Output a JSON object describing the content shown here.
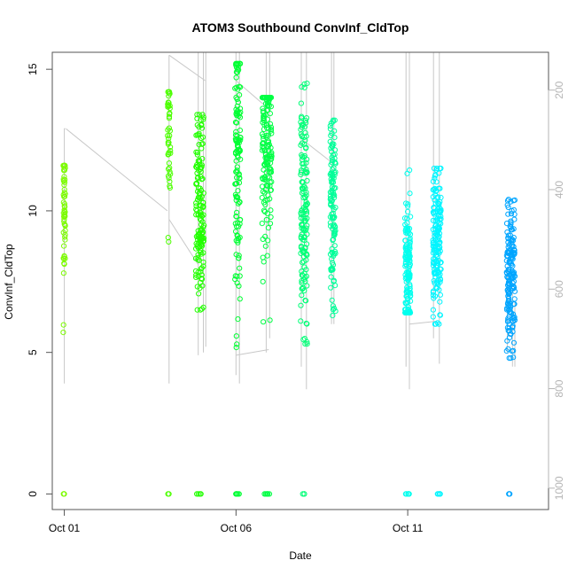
{
  "chart_data": {
    "type": "scatter",
    "title": "ATOM3 Southbound ConvInf_CldTop",
    "xlabel": "Date",
    "ylabel": "ConvInf_CldTop",
    "x_tick_labels": [
      "Oct 01",
      "Oct 06",
      "Oct 11"
    ],
    "x_tick_values": [
      1,
      6,
      11
    ],
    "xlim": [
      0.65,
      15.1
    ],
    "ylim": [
      -0.55,
      15.6
    ],
    "y_ticks": [
      0,
      5,
      10,
      15
    ],
    "secondary_axis": {
      "side": "right",
      "ticks": [
        200,
        400,
        600,
        800,
        1000
      ],
      "ylim_pressure": [
        1043,
        124
      ],
      "reversed": true,
      "color": "#b5b5b5"
    },
    "grid": false,
    "legend": "none",
    "marker": "open-circle",
    "colors": {
      "axis": "#555555",
      "secondary_axis": "#b5b5b5",
      "trace": "#c8c8c8"
    },
    "clusters": [
      {
        "x_day": 1.0,
        "width": 0.03,
        "y_range": [
          5.7,
          11.6
        ],
        "center": 10.2,
        "n": 60,
        "color": "#7cfc00",
        "zeros": 3
      },
      {
        "x_day": 4.05,
        "width": 0.04,
        "y_range": [
          8.8,
          14.2
        ],
        "center": 12.5,
        "n": 45,
        "color": "#4cff00",
        "zeros": 2
      },
      {
        "x_day": 4.95,
        "width": 0.12,
        "y_range": [
          6.5,
          13.4
        ],
        "center": 10.0,
        "n": 160,
        "color": "#22ff00",
        "zeros": 4
      },
      {
        "x_day": 6.05,
        "width": 0.08,
        "y_range": [
          5.0,
          15.2
        ],
        "center": 12.0,
        "n": 130,
        "color": "#00ff33",
        "zeros": 5
      },
      {
        "x_day": 6.9,
        "width": 0.14,
        "y_range": [
          6.0,
          14.0
        ],
        "center": 12.5,
        "n": 170,
        "color": "#00ff44",
        "zeros": 6
      },
      {
        "x_day": 7.98,
        "width": 0.1,
        "y_range": [
          5.3,
          14.6
        ],
        "center": 10.0,
        "n": 150,
        "color": "#00ff77",
        "zeros": 3
      },
      {
        "x_day": 8.82,
        "width": 0.08,
        "y_range": [
          6.3,
          13.2
        ],
        "center": 10.0,
        "n": 120,
        "color": "#00ff99",
        "zeros": 0
      },
      {
        "x_day": 11.0,
        "width": 0.08,
        "y_range": [
          6.4,
          11.6
        ],
        "center": 8.0,
        "n": 140,
        "color": "#00ffee",
        "zeros": 6
      },
      {
        "x_day": 11.85,
        "width": 0.12,
        "y_range": [
          6.0,
          11.5
        ],
        "center": 9.0,
        "n": 170,
        "color": "#00f5ff",
        "zeros": 5
      },
      {
        "x_day": 14.0,
        "width": 0.12,
        "y_range": [
          4.8,
          10.4
        ],
        "center": 7.7,
        "n": 170,
        "color": "#00a5ff",
        "zeros": 3
      }
    ],
    "traces": [
      {
        "x": [
          1.0,
          1.0,
          1.03
        ],
        "y": [
          3.9,
          12.9,
          12.9
        ]
      },
      {
        "x": [
          1.05,
          4.0
        ],
        "y": [
          12.9,
          10.0
        ]
      },
      {
        "x": [
          4.05,
          4.05
        ],
        "y": [
          3.9,
          15.5
        ]
      },
      {
        "x": [
          4.05,
          5.1
        ],
        "y": [
          15.5,
          14.6
        ]
      },
      {
        "x": [
          4.05,
          4.9
        ],
        "y": [
          9.7,
          8.1
        ]
      },
      {
        "x": [
          4.9,
          4.9
        ],
        "y": [
          4.9,
          15.6
        ]
      },
      {
        "x": [
          5.05,
          5.05
        ],
        "y": [
          5.0,
          15.6
        ]
      },
      {
        "x": [
          5.12,
          5.12
        ],
        "y": [
          5.2,
          15.6
        ]
      },
      {
        "x": [
          6.0,
          6.0
        ],
        "y": [
          4.2,
          15.6
        ]
      },
      {
        "x": [
          6.1,
          6.1
        ],
        "y": [
          3.9,
          15.6
        ]
      },
      {
        "x": [
          6.0,
          6.95
        ],
        "y": [
          14.6,
          13.6
        ]
      },
      {
        "x": [
          6.0,
          6.95
        ],
        "y": [
          4.9,
          5.1
        ]
      },
      {
        "x": [
          6.88,
          6.88
        ],
        "y": [
          5.0,
          15.6
        ]
      },
      {
        "x": [
          6.98,
          6.98
        ],
        "y": [
          5.5,
          15.6
        ]
      },
      {
        "x": [
          7.9,
          7.9
        ],
        "y": [
          4.5,
          15.6
        ]
      },
      {
        "x": [
          8.05,
          8.05
        ],
        "y": [
          3.7,
          15.6
        ]
      },
      {
        "x": [
          7.95,
          8.8
        ],
        "y": [
          12.5,
          11.7
        ]
      },
      {
        "x": [
          8.78,
          8.78
        ],
        "y": [
          6.0,
          15.6
        ]
      },
      {
        "x": [
          8.85,
          8.85
        ],
        "y": [
          6.0,
          15.6
        ]
      },
      {
        "x": [
          10.95,
          10.95
        ],
        "y": [
          4.5,
          15.6
        ]
      },
      {
        "x": [
          11.05,
          11.05
        ],
        "y": [
          3.7,
          15.6
        ]
      },
      {
        "x": [
          11.05,
          11.85
        ],
        "y": [
          6.0,
          6.1
        ]
      },
      {
        "x": [
          11.75,
          11.75
        ],
        "y": [
          5.5,
          15.6
        ]
      },
      {
        "x": [
          11.92,
          11.92
        ],
        "y": [
          4.6,
          15.6
        ]
      },
      {
        "x": [
          13.9,
          13.9
        ],
        "y": [
          5.0,
          8.0
        ]
      },
      {
        "x": [
          14.05,
          14.05
        ],
        "y": [
          4.5,
          7.2
        ]
      },
      {
        "x": [
          14.12,
          14.12
        ],
        "y": [
          4.5,
          6.8
        ]
      }
    ]
  }
}
